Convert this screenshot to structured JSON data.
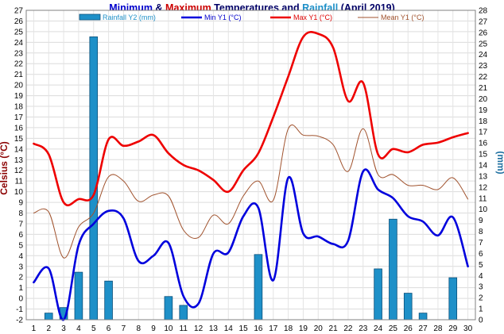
{
  "chart_data": {
    "type": "bar+line",
    "title": {
      "parts": [
        {
          "text": "Minimum",
          "color": "#0000cc"
        },
        {
          "text": " & ",
          "color": "#000066"
        },
        {
          "text": "Maximum",
          "color": "#cc0000"
        },
        {
          "text": " Temperatures and ",
          "color": "#000066"
        },
        {
          "text": "Rainfall",
          "color": "#1e90c8"
        },
        {
          "text": " (April 2019)",
          "color": "#000066"
        }
      ]
    },
    "y_left_label": "Celsius (°C)",
    "y_right_label": "(mm)",
    "y_left_range": [
      -2,
      27
    ],
    "y_right_range": [
      0,
      28
    ],
    "y_left_ticks": [
      -2,
      -1,
      0,
      1,
      2,
      3,
      4,
      5,
      6,
      7,
      8,
      9,
      10,
      11,
      12,
      13,
      14,
      15,
      16,
      17,
      18,
      19,
      20,
      21,
      22,
      23,
      24,
      25,
      26,
      27
    ],
    "y_right_ticks": [
      0,
      1,
      2,
      3,
      4,
      5,
      6,
      7,
      8,
      9,
      10,
      11,
      12,
      13,
      14,
      15,
      16,
      17,
      18,
      19,
      20,
      21,
      22,
      23,
      24,
      25,
      26,
      27,
      28
    ],
    "x": [
      1,
      2,
      3,
      4,
      5,
      6,
      7,
      8,
      9,
      10,
      11,
      12,
      13,
      14,
      15,
      16,
      17,
      18,
      19,
      20,
      21,
      22,
      23,
      24,
      25,
      26,
      27,
      28,
      29,
      30
    ],
    "legend": [
      {
        "label": "Rainfall Y2 (mm)",
        "color": "#1e90c8",
        "text_color": "#1e90c8",
        "kind": "bar"
      },
      {
        "label": "Min Y1 (°C)",
        "color": "#0000dd",
        "text_color": "#0000cc",
        "kind": "line"
      },
      {
        "label": "Max Y1 (°C)",
        "color": "#ee0000",
        "text_color": "#dd0000",
        "kind": "line"
      },
      {
        "label": "Mean Y1 (°C)",
        "color": "#a0522d",
        "text_color": "#a0522d",
        "kind": "line"
      }
    ],
    "series": [
      {
        "name": "Rainfall Y2 (mm)",
        "axis": "right",
        "color": "#1e90c8",
        "values": [
          0,
          0.6,
          1.1,
          4.3,
          25.6,
          3.5,
          0,
          0,
          0,
          2.1,
          1.3,
          0,
          0,
          0,
          0,
          5.9,
          0,
          0,
          0,
          0,
          0,
          0,
          0,
          4.6,
          9.1,
          2.4,
          0.6,
          0,
          3.8,
          0
        ]
      },
      {
        "name": "Min Y1 (°C)",
        "axis": "left",
        "color": "#0000dd",
        "values": [
          1.5,
          2.8,
          -2.0,
          5.0,
          7.0,
          8.2,
          7.5,
          3.5,
          4.0,
          5.2,
          0.2,
          -0.5,
          4.2,
          4.3,
          7.7,
          8.5,
          1.7,
          11.3,
          6.1,
          5.8,
          5.1,
          5.4,
          11.9,
          10.2,
          9.4,
          7.7,
          7.2,
          5.9,
          7.6,
          3.0
        ]
      },
      {
        "name": "Max Y1 (°C)",
        "axis": "left",
        "color": "#ee0000",
        "values": [
          14.5,
          13.5,
          9.0,
          9.3,
          9.7,
          14.9,
          14.3,
          14.7,
          15.3,
          13.6,
          12.5,
          12.0,
          11.1,
          10.0,
          12.0,
          13.6,
          17.0,
          20.8,
          24.5,
          24.8,
          23.5,
          18.5,
          20.2,
          13.5,
          14.0,
          13.7,
          14.4,
          14.6,
          15.1,
          15.5
        ]
      },
      {
        "name": "Mean Y1 (°C)",
        "axis": "left",
        "color": "#a0522d",
        "values": [
          8.0,
          8.1,
          3.8,
          6.7,
          8.0,
          11.4,
          11.0,
          9.1,
          9.7,
          9.6,
          6.4,
          5.7,
          7.8,
          7.0,
          9.6,
          11.0,
          9.2,
          15.9,
          15.3,
          15.2,
          14.4,
          11.9,
          15.9,
          11.6,
          11.6,
          10.6,
          10.6,
          10.2,
          11.3,
          9.3
        ]
      }
    ]
  }
}
